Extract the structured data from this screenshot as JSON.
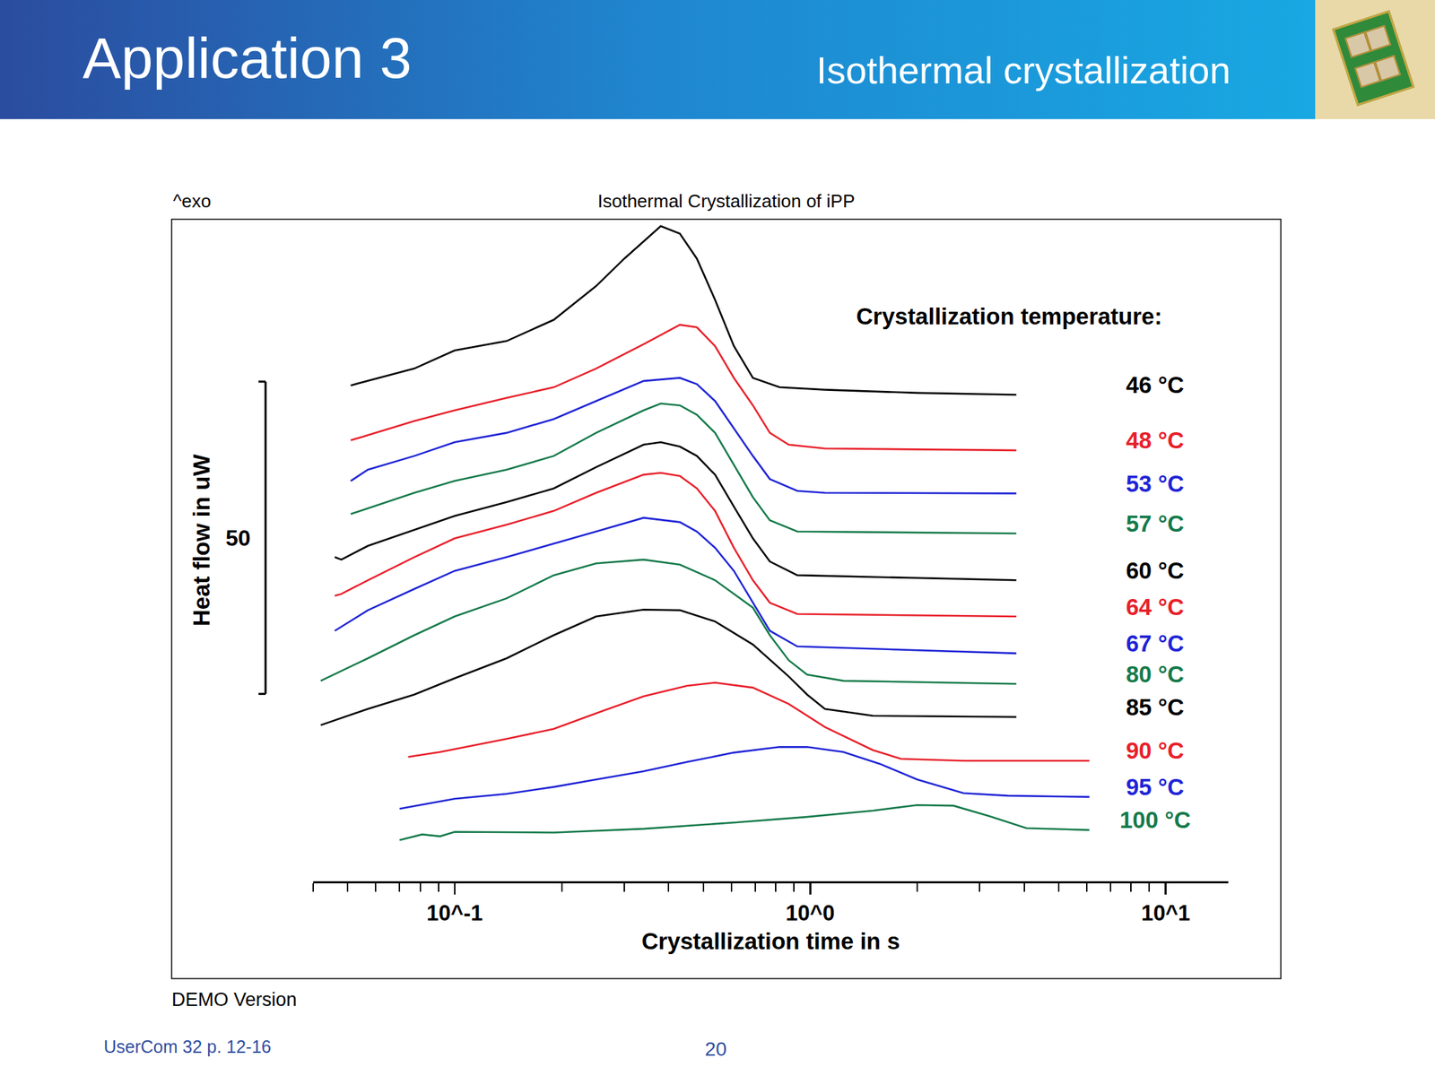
{
  "header": {
    "title": "Application 3",
    "subtitle": "Isothermal crystallization"
  },
  "footer": {
    "note": "DEMO Version",
    "source": "UserCom 32 p. 12-16",
    "page": "20"
  },
  "chart_data": {
    "type": "line",
    "title": "Isothermal Crystallization of iPP",
    "corner_label": "^exo",
    "x_label": "Crystallization time in s",
    "y_label": "Heat flow in uW",
    "legend_title": "Crystallization temperature:",
    "log": "x",
    "grid": false,
    "tick_labels": "x",
    "xlim": [
      0.04,
      15
    ],
    "xticks": [
      {
        "value": 0.1,
        "label": "10^-1"
      },
      {
        "value": 1,
        "label": "10^0"
      },
      {
        "value": 10,
        "label": "10^1"
      }
    ],
    "ylim": [
      0,
      106
    ],
    "yticks": [],
    "scale_bar": {
      "value": 50,
      "from": 30
    },
    "series": [
      {
        "name": "46 °C",
        "color": "#000000",
        "x": [
          0.051,
          0.077,
          0.1,
          0.14,
          0.19,
          0.25,
          0.3,
          0.38,
          0.43,
          0.48,
          0.54,
          0.61,
          0.69,
          0.82,
          1.1,
          2.0,
          3.8
        ],
        "values": [
          79.4,
          82.1,
          85.0,
          86.5,
          89.9,
          95.3,
          99.7,
          104.9,
          103.7,
          99.7,
          93.1,
          85.7,
          80.6,
          79.1,
          78.7,
          78.2,
          77.9
        ]
      },
      {
        "name": "48 °C",
        "color": "#e8202a",
        "x": [
          0.051,
          0.077,
          0.1,
          0.14,
          0.19,
          0.25,
          0.34,
          0.43,
          0.48,
          0.54,
          0.61,
          0.69,
          0.77,
          0.87,
          1.1,
          3.8
        ],
        "values": [
          70.6,
          73.7,
          75.4,
          77.4,
          79.1,
          82.1,
          86.0,
          89.1,
          88.7,
          85.7,
          80.6,
          76.2,
          71.8,
          69.9,
          69.3,
          69.0
        ]
      },
      {
        "name": "53 °C",
        "color": "#1f24d6",
        "x": [
          0.051,
          0.057,
          0.077,
          0.1,
          0.14,
          0.19,
          0.25,
          0.34,
          0.43,
          0.48,
          0.54,
          0.61,
          0.69,
          0.77,
          0.92,
          1.1,
          3.8
        ],
        "values": [
          64.1,
          65.9,
          68.1,
          70.3,
          71.8,
          74.0,
          76.9,
          80.1,
          80.6,
          79.6,
          76.9,
          72.5,
          68.1,
          64.4,
          62.5,
          62.2,
          62.1
        ]
      },
      {
        "name": "57 °C",
        "color": "#157a4a",
        "x": [
          0.051,
          0.077,
          0.1,
          0.14,
          0.19,
          0.25,
          0.34,
          0.38,
          0.43,
          0.48,
          0.54,
          0.61,
          0.69,
          0.77,
          0.92,
          3.8
        ],
        "values": [
          58.8,
          62.2,
          64.1,
          65.9,
          68.1,
          71.8,
          75.4,
          76.5,
          76.2,
          74.7,
          71.8,
          66.6,
          61.5,
          57.8,
          56.0,
          55.7
        ]
      },
      {
        "name": "60 °C",
        "color": "#000000",
        "x": [
          0.046,
          0.048,
          0.057,
          0.077,
          0.1,
          0.14,
          0.19,
          0.25,
          0.34,
          0.38,
          0.43,
          0.48,
          0.54,
          0.61,
          0.69,
          0.77,
          0.92,
          3.8
        ],
        "values": [
          51.9,
          51.5,
          53.7,
          56.3,
          58.5,
          60.7,
          62.9,
          66.3,
          69.9,
          70.3,
          69.6,
          68.1,
          65.1,
          60.0,
          54.9,
          51.2,
          49.0,
          48.2
        ]
      },
      {
        "name": "64 °C",
        "color": "#e8202a",
        "x": [
          0.046,
          0.048,
          0.057,
          0.077,
          0.1,
          0.14,
          0.19,
          0.25,
          0.34,
          0.38,
          0.43,
          0.48,
          0.54,
          0.61,
          0.69,
          0.77,
          0.92,
          3.8
        ],
        "values": [
          45.7,
          46.0,
          48.2,
          51.9,
          54.9,
          57.1,
          59.3,
          62.2,
          65.1,
          65.4,
          64.9,
          62.9,
          59.3,
          53.4,
          48.2,
          44.6,
          42.8,
          42.4
        ]
      },
      {
        "name": "67 °C",
        "color": "#1f24d6",
        "x": [
          0.046,
          0.057,
          0.077,
          0.1,
          0.14,
          0.19,
          0.25,
          0.34,
          0.43,
          0.48,
          0.54,
          0.61,
          0.69,
          0.77,
          0.92,
          3.8
        ],
        "values": [
          40.1,
          43.4,
          46.8,
          49.7,
          51.9,
          54.1,
          56.0,
          58.2,
          57.5,
          56.0,
          53.4,
          49.7,
          44.6,
          40.1,
          37.6,
          36.5
        ]
      },
      {
        "name": "80 °C",
        "color": "#157a4a",
        "x": [
          0.042,
          0.057,
          0.077,
          0.1,
          0.14,
          0.19,
          0.25,
          0.34,
          0.43,
          0.54,
          0.69,
          0.77,
          0.87,
          0.98,
          1.24,
          3.8
        ],
        "values": [
          32.1,
          35.7,
          39.4,
          42.4,
          45.3,
          49.0,
          50.9,
          51.5,
          50.7,
          48.2,
          43.8,
          39.4,
          35.4,
          33.1,
          32.1,
          31.6
        ]
      },
      {
        "name": "85 °C",
        "color": "#000000",
        "x": [
          0.042,
          0.057,
          0.077,
          0.1,
          0.14,
          0.19,
          0.25,
          0.34,
          0.43,
          0.54,
          0.69,
          0.87,
          0.98,
          1.1,
          1.5,
          3.8
        ],
        "values": [
          25.0,
          27.6,
          29.9,
          32.5,
          35.7,
          39.4,
          42.4,
          43.5,
          43.4,
          41.6,
          37.9,
          32.8,
          29.9,
          27.6,
          26.5,
          26.3
        ]
      },
      {
        "name": "90 °C",
        "color": "#e8202a",
        "x": [
          0.074,
          0.091,
          0.14,
          0.19,
          0.25,
          0.34,
          0.45,
          0.54,
          0.69,
          0.87,
          1.1,
          1.5,
          1.8,
          2.7,
          6.1
        ],
        "values": [
          19.9,
          20.7,
          22.8,
          24.4,
          26.9,
          29.6,
          31.3,
          31.8,
          31.0,
          28.4,
          24.7,
          21.0,
          19.6,
          19.3,
          19.3
        ]
      },
      {
        "name": "95 °C",
        "color": "#1f24d6",
        "x": [
          0.07,
          0.1,
          0.14,
          0.19,
          0.25,
          0.34,
          0.45,
          0.61,
          0.82,
          0.98,
          1.24,
          1.57,
          2.0,
          2.7,
          3.6,
          6.1
        ],
        "values": [
          11.6,
          13.2,
          14.0,
          15.1,
          16.3,
          17.6,
          19.1,
          20.6,
          21.5,
          21.5,
          20.7,
          18.8,
          16.3,
          14.1,
          13.7,
          13.5
        ]
      },
      {
        "name": "100 °C",
        "color": "#157a4a",
        "x": [
          0.07,
          0.081,
          0.091,
          0.1,
          0.19,
          0.34,
          0.61,
          0.98,
          1.5,
          2.0,
          2.53,
          3.2,
          4.06,
          6.1
        ],
        "values": [
          6.6,
          7.5,
          7.2,
          7.9,
          7.8,
          8.4,
          9.4,
          10.3,
          11.3,
          12.2,
          12.1,
          10.4,
          8.5,
          8.2
        ]
      }
    ]
  }
}
